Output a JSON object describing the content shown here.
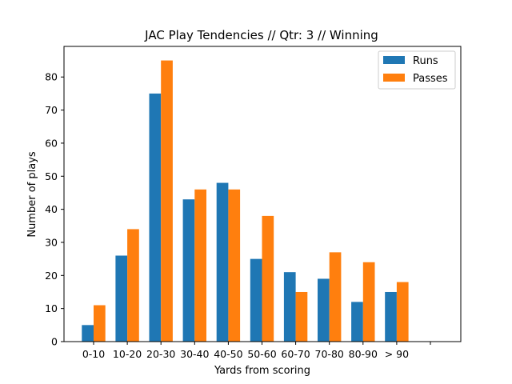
{
  "chart_data": {
    "type": "bar",
    "title": "JAC Play Tendencies // Qtr: 3 // Winning",
    "xlabel": "Yards from scoring",
    "ylabel": "Number of plays",
    "categories": [
      "0-10",
      "10-20",
      "20-30",
      "30-40",
      "40-50",
      "50-60",
      "60-70",
      "70-80",
      "80-90",
      "> 90",
      ""
    ],
    "series": [
      {
        "name": "Runs",
        "color": "#1f77b4",
        "values": [
          5,
          26,
          75,
          43,
          48,
          25,
          21,
          19,
          12,
          15,
          0
        ]
      },
      {
        "name": "Passes",
        "color": "#ff7f0e",
        "values": [
          11,
          34,
          85,
          46,
          46,
          38,
          15,
          27,
          24,
          18,
          0
        ]
      }
    ],
    "ylim": [
      0,
      89.25
    ],
    "yticks": [
      0,
      10,
      20,
      30,
      40,
      50,
      60,
      70,
      80
    ],
    "legend_position": "top-right",
    "grid": false
  }
}
